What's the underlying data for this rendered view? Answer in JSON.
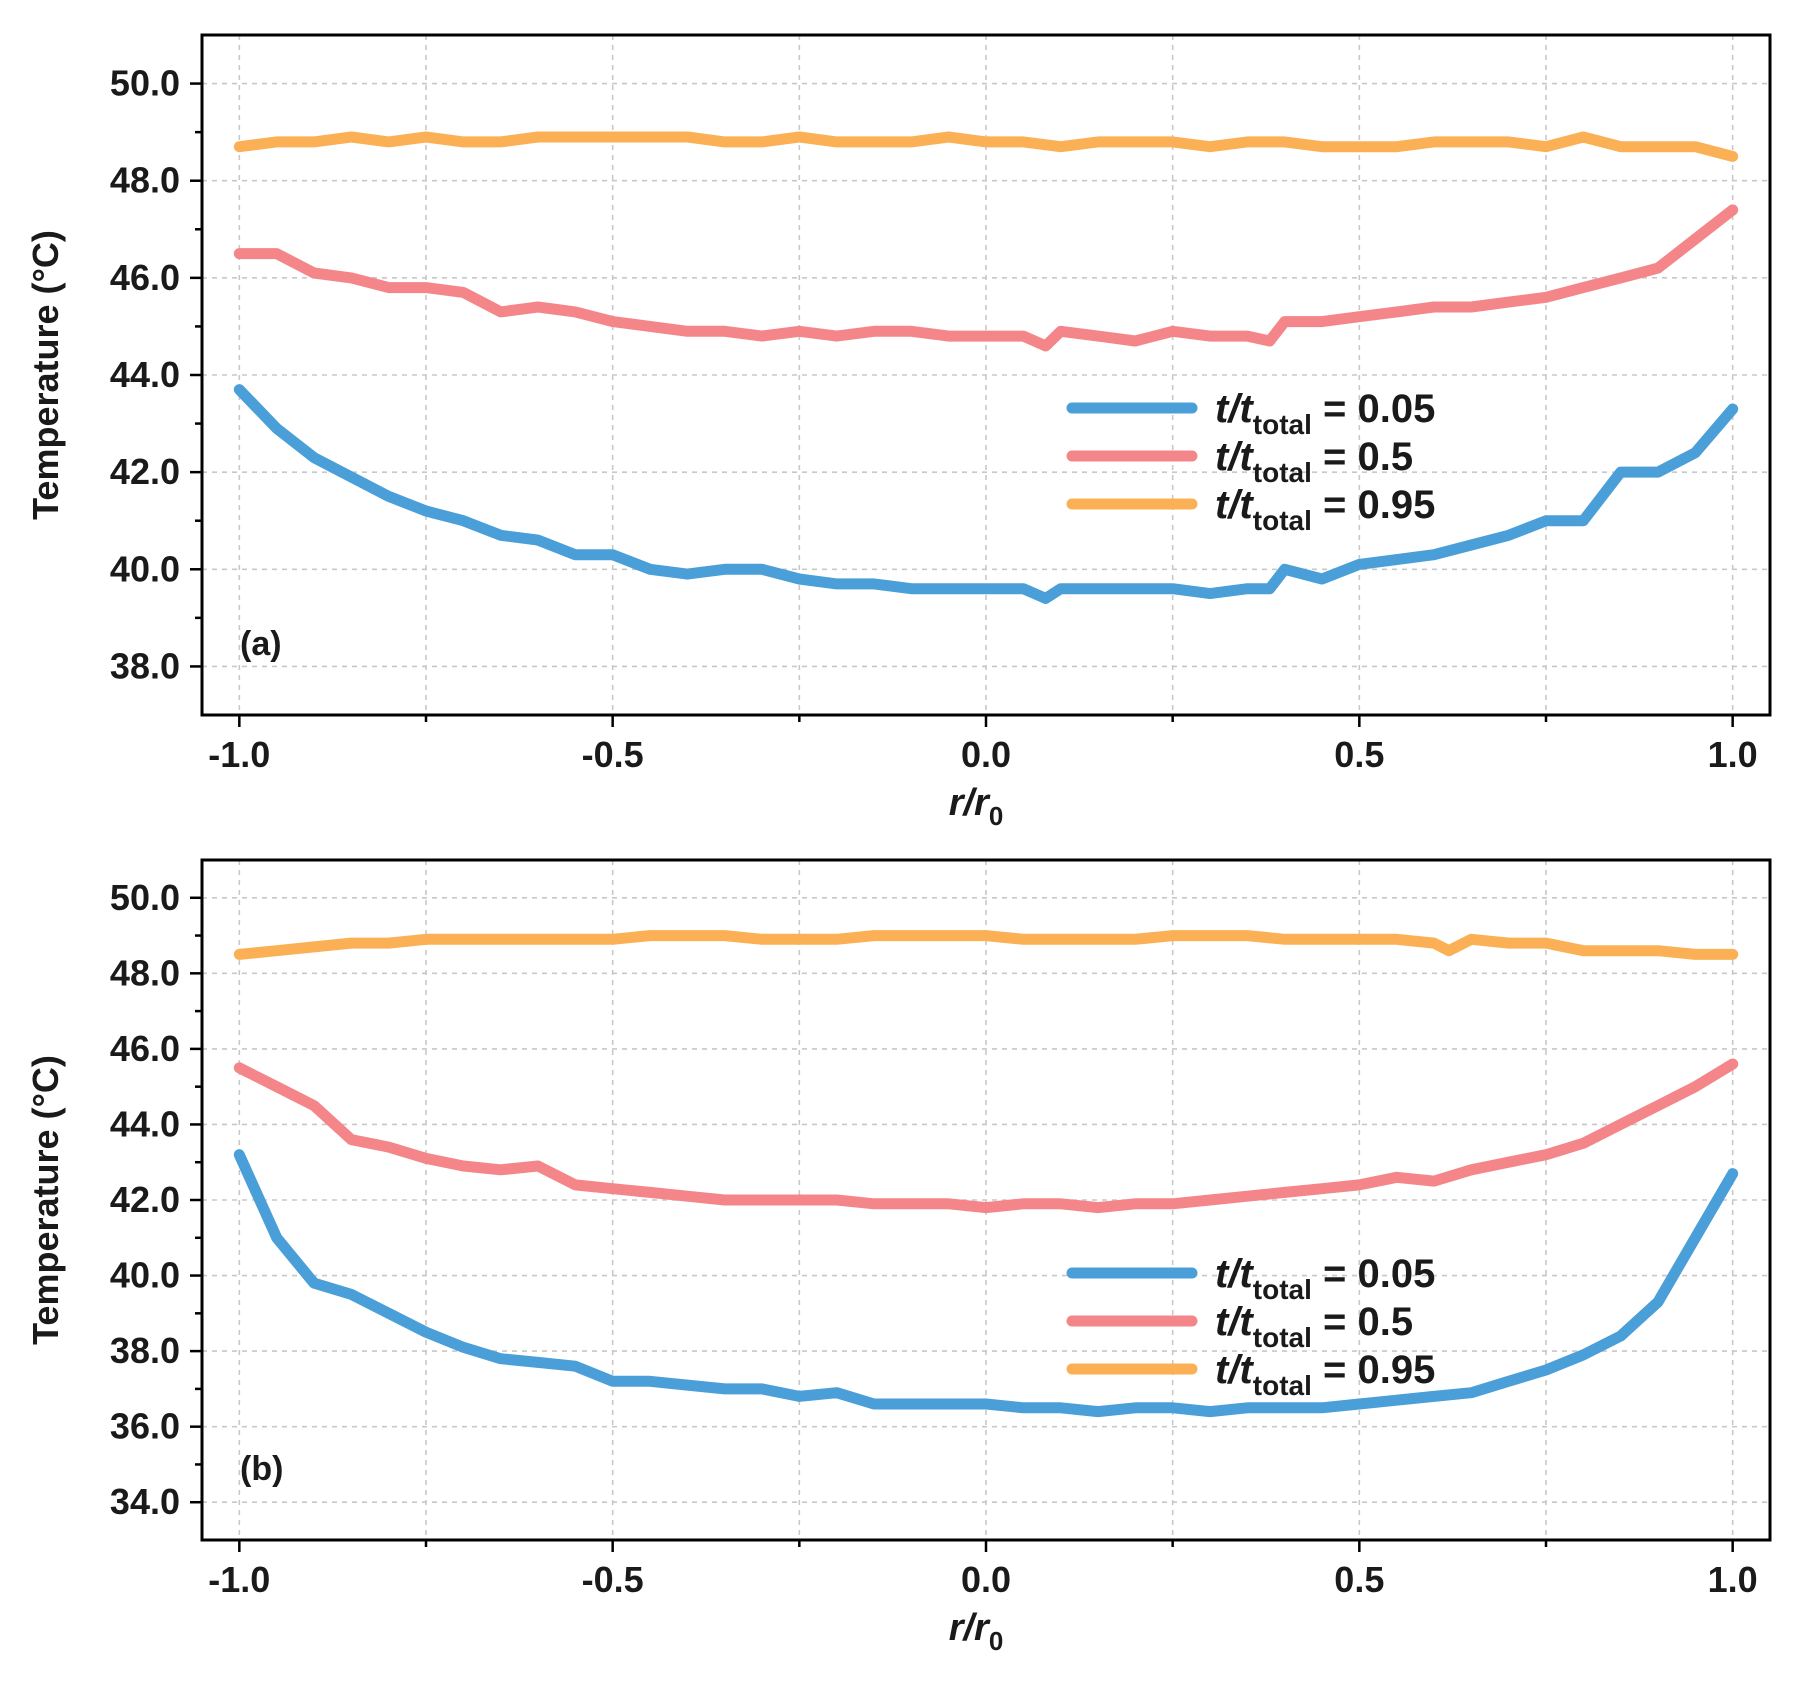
{
  "colors": {
    "t0_05": "#4A9FD8",
    "t0_5": "#F4868A",
    "t0_95": "#FBB055"
  },
  "chart_data": [
    {
      "type": "line",
      "panel_label": "(a)",
      "xlabel_main": "r/r",
      "xlabel_sub": "0",
      "ylabel": "Temperature (°C)",
      "xlim": [
        -1.05,
        1.05
      ],
      "ylim": [
        37.0,
        51.0
      ],
      "xticks": [
        -1.0,
        -0.5,
        0.0,
        0.5,
        1.0
      ],
      "xtick_labels": [
        "-1.0",
        "-0.5",
        "0.0",
        "0.5",
        "1.0"
      ],
      "yticks": [
        38.0,
        40.0,
        42.0,
        44.0,
        46.0,
        48.0,
        50.0
      ],
      "ytick_labels": [
        "38.0",
        "40.0",
        "42.0",
        "44.0",
        "46.0",
        "48.0",
        "50.0"
      ],
      "grid": true,
      "legend_position": "center-right",
      "series": [
        {
          "legend_prefix": "t/t",
          "legend_sub": "total",
          "legend_suffix": " = 0.05",
          "color_key": "t0_05",
          "x": [
            -1.0,
            -0.95,
            -0.9,
            -0.85,
            -0.8,
            -0.75,
            -0.7,
            -0.65,
            -0.6,
            -0.55,
            -0.5,
            -0.45,
            -0.4,
            -0.35,
            -0.3,
            -0.25,
            -0.2,
            -0.15,
            -0.1,
            -0.05,
            0.0,
            0.05,
            0.08,
            0.1,
            0.15,
            0.2,
            0.25,
            0.3,
            0.35,
            0.38,
            0.4,
            0.45,
            0.5,
            0.55,
            0.6,
            0.65,
            0.7,
            0.75,
            0.8,
            0.85,
            0.9,
            0.95,
            1.0
          ],
          "y": [
            43.7,
            42.9,
            42.3,
            41.9,
            41.5,
            41.2,
            41.0,
            40.7,
            40.6,
            40.3,
            40.3,
            40.0,
            39.9,
            40.0,
            40.0,
            39.8,
            39.7,
            39.7,
            39.6,
            39.6,
            39.6,
            39.6,
            39.4,
            39.6,
            39.6,
            39.6,
            39.6,
            39.5,
            39.6,
            39.6,
            40.0,
            39.8,
            40.1,
            40.2,
            40.3,
            40.5,
            40.7,
            41.0,
            41.0,
            42.0,
            42.0,
            42.4,
            43.3
          ]
        },
        {
          "legend_prefix": "t/t",
          "legend_sub": "total",
          "legend_suffix": " = 0.5",
          "color_key": "t0_5",
          "x": [
            -1.0,
            -0.95,
            -0.9,
            -0.85,
            -0.8,
            -0.75,
            -0.7,
            -0.65,
            -0.6,
            -0.55,
            -0.5,
            -0.45,
            -0.4,
            -0.35,
            -0.3,
            -0.25,
            -0.2,
            -0.15,
            -0.1,
            -0.05,
            0.0,
            0.05,
            0.08,
            0.1,
            0.15,
            0.2,
            0.25,
            0.3,
            0.35,
            0.38,
            0.4,
            0.45,
            0.5,
            0.55,
            0.6,
            0.65,
            0.7,
            0.75,
            0.8,
            0.85,
            0.9,
            0.95,
            1.0
          ],
          "y": [
            46.5,
            46.5,
            46.1,
            46.0,
            45.8,
            45.8,
            45.7,
            45.3,
            45.4,
            45.3,
            45.1,
            45.0,
            44.9,
            44.9,
            44.8,
            44.9,
            44.8,
            44.9,
            44.9,
            44.8,
            44.8,
            44.8,
            44.6,
            44.9,
            44.8,
            44.7,
            44.9,
            44.8,
            44.8,
            44.7,
            45.1,
            45.1,
            45.2,
            45.3,
            45.4,
            45.4,
            45.5,
            45.6,
            45.8,
            46.0,
            46.2,
            46.8,
            47.4
          ]
        },
        {
          "legend_prefix": "t/t",
          "legend_sub": "total",
          "legend_suffix": " = 0.95",
          "color_key": "t0_95",
          "x": [
            -1.0,
            -0.95,
            -0.9,
            -0.85,
            -0.8,
            -0.75,
            -0.7,
            -0.65,
            -0.6,
            -0.55,
            -0.5,
            -0.45,
            -0.4,
            -0.35,
            -0.3,
            -0.25,
            -0.2,
            -0.15,
            -0.1,
            -0.05,
            0.0,
            0.05,
            0.1,
            0.15,
            0.2,
            0.25,
            0.3,
            0.35,
            0.4,
            0.45,
            0.5,
            0.55,
            0.6,
            0.65,
            0.7,
            0.75,
            0.8,
            0.85,
            0.9,
            0.95,
            1.0
          ],
          "y": [
            48.7,
            48.8,
            48.8,
            48.9,
            48.8,
            48.9,
            48.8,
            48.8,
            48.9,
            48.9,
            48.9,
            48.9,
            48.9,
            48.8,
            48.8,
            48.9,
            48.8,
            48.8,
            48.8,
            48.9,
            48.8,
            48.8,
            48.7,
            48.8,
            48.8,
            48.8,
            48.7,
            48.8,
            48.8,
            48.7,
            48.7,
            48.7,
            48.8,
            48.8,
            48.8,
            48.7,
            48.9,
            48.7,
            48.7,
            48.7,
            48.5
          ]
        }
      ]
    },
    {
      "type": "line",
      "panel_label": "(b)",
      "xlabel_main": "r/r",
      "xlabel_sub": "0",
      "ylabel": "Temperature (°C)",
      "xlim": [
        -1.05,
        1.05
      ],
      "ylim": [
        33.0,
        51.0
      ],
      "xticks": [
        -1.0,
        -0.5,
        0.0,
        0.5,
        1.0
      ],
      "xtick_labels": [
        "-1.0",
        "-0.5",
        "0.0",
        "0.5",
        "1.0"
      ],
      "yticks": [
        34.0,
        36.0,
        38.0,
        40.0,
        42.0,
        44.0,
        46.0,
        48.0,
        50.0
      ],
      "ytick_labels": [
        "34.0",
        "36.0",
        "38.0",
        "40.0",
        "42.0",
        "44.0",
        "46.0",
        "48.0",
        "50.0"
      ],
      "grid": true,
      "legend_position": "center-right",
      "series": [
        {
          "legend_prefix": "t/t",
          "legend_sub": "total",
          "legend_suffix": " = 0.05",
          "color_key": "t0_05",
          "x": [
            -1.0,
            -0.95,
            -0.9,
            -0.85,
            -0.8,
            -0.75,
            -0.7,
            -0.65,
            -0.6,
            -0.55,
            -0.5,
            -0.45,
            -0.4,
            -0.35,
            -0.3,
            -0.25,
            -0.2,
            -0.15,
            -0.1,
            -0.05,
            0.0,
            0.05,
            0.1,
            0.15,
            0.2,
            0.25,
            0.3,
            0.35,
            0.4,
            0.45,
            0.5,
            0.55,
            0.6,
            0.65,
            0.7,
            0.75,
            0.8,
            0.85,
            0.9,
            0.95,
            1.0
          ],
          "y": [
            43.2,
            41.0,
            39.8,
            39.5,
            39.0,
            38.5,
            38.1,
            37.8,
            37.7,
            37.6,
            37.2,
            37.2,
            37.1,
            37.0,
            37.0,
            36.8,
            36.9,
            36.6,
            36.6,
            36.6,
            36.6,
            36.5,
            36.5,
            36.4,
            36.5,
            36.5,
            36.4,
            36.5,
            36.5,
            36.5,
            36.6,
            36.7,
            36.8,
            36.9,
            37.2,
            37.5,
            37.9,
            38.4,
            39.3,
            41.0,
            42.7
          ]
        },
        {
          "legend_prefix": "t/t",
          "legend_sub": "total",
          "legend_suffix": " = 0.5",
          "color_key": "t0_5",
          "x": [
            -1.0,
            -0.95,
            -0.9,
            -0.85,
            -0.8,
            -0.75,
            -0.7,
            -0.65,
            -0.6,
            -0.55,
            -0.5,
            -0.45,
            -0.4,
            -0.35,
            -0.3,
            -0.25,
            -0.2,
            -0.15,
            -0.1,
            -0.05,
            0.0,
            0.05,
            0.1,
            0.15,
            0.2,
            0.25,
            0.3,
            0.35,
            0.4,
            0.45,
            0.5,
            0.55,
            0.6,
            0.65,
            0.7,
            0.75,
            0.8,
            0.85,
            0.9,
            0.95,
            1.0
          ],
          "y": [
            45.5,
            45.0,
            44.5,
            43.6,
            43.4,
            43.1,
            42.9,
            42.8,
            42.9,
            42.4,
            42.3,
            42.2,
            42.1,
            42.0,
            42.0,
            42.0,
            42.0,
            41.9,
            41.9,
            41.9,
            41.8,
            41.9,
            41.9,
            41.8,
            41.9,
            41.9,
            42.0,
            42.1,
            42.2,
            42.3,
            42.4,
            42.6,
            42.5,
            42.8,
            43.0,
            43.2,
            43.5,
            44.0,
            44.5,
            45.0,
            45.6
          ]
        },
        {
          "legend_prefix": "t/t",
          "legend_sub": "total",
          "legend_suffix": " = 0.95",
          "color_key": "t0_95",
          "x": [
            -1.0,
            -0.95,
            -0.9,
            -0.85,
            -0.8,
            -0.75,
            -0.7,
            -0.65,
            -0.6,
            -0.55,
            -0.5,
            -0.45,
            -0.4,
            -0.35,
            -0.3,
            -0.25,
            -0.2,
            -0.15,
            -0.1,
            -0.05,
            0.0,
            0.05,
            0.1,
            0.15,
            0.2,
            0.25,
            0.3,
            0.35,
            0.4,
            0.45,
            0.5,
            0.55,
            0.6,
            0.62,
            0.65,
            0.7,
            0.75,
            0.8,
            0.85,
            0.9,
            0.95,
            1.0
          ],
          "y": [
            48.5,
            48.6,
            48.7,
            48.8,
            48.8,
            48.9,
            48.9,
            48.9,
            48.9,
            48.9,
            48.9,
            49.0,
            49.0,
            49.0,
            48.9,
            48.9,
            48.9,
            49.0,
            49.0,
            49.0,
            49.0,
            48.9,
            48.9,
            48.9,
            48.9,
            49.0,
            49.0,
            49.0,
            48.9,
            48.9,
            48.9,
            48.9,
            48.8,
            48.6,
            48.9,
            48.8,
            48.8,
            48.6,
            48.6,
            48.6,
            48.5,
            48.5
          ]
        }
      ]
    }
  ]
}
